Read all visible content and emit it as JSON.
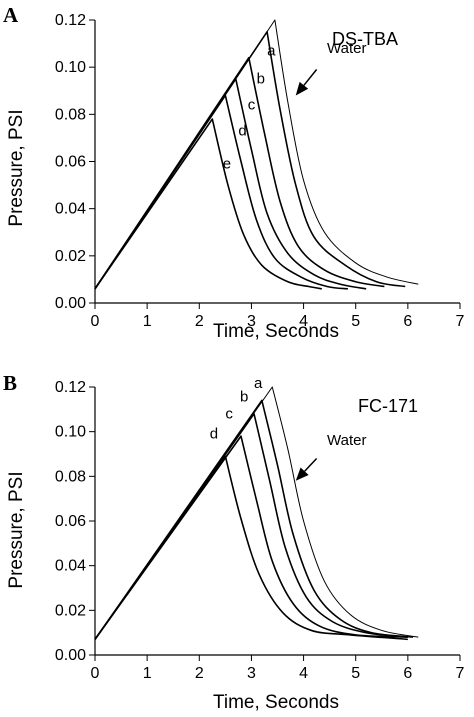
{
  "chart_data": [
    {
      "type": "line",
      "panel": "A",
      "title": "DS-TBA",
      "xlabel": "Time, Seconds",
      "ylabel": "Pressure, PSI",
      "xlim": [
        0,
        7
      ],
      "ylim": [
        0,
        0.12
      ],
      "xticks": [
        "0",
        "1",
        "2",
        "3",
        "4",
        "5",
        "6",
        "7"
      ],
      "yticks": [
        "0.00",
        "0.02",
        "0.04",
        "0.06",
        "0.08",
        "0.10",
        "0.12"
      ],
      "grid": false,
      "annotation": "Water",
      "series": [
        {
          "label": "",
          "width": 1.0,
          "x": [
            0,
            3.45,
            3.7,
            4.0,
            4.4,
            5.0,
            5.6,
            6.2
          ],
          "y": [
            0.006,
            0.12,
            0.085,
            0.052,
            0.03,
            0.017,
            0.011,
            0.008
          ]
        },
        {
          "label": "a",
          "width": 1.6,
          "x": [
            0,
            3.3,
            3.55,
            3.85,
            4.2,
            4.8,
            5.4,
            5.95
          ],
          "y": [
            0.006,
            0.115,
            0.082,
            0.05,
            0.028,
            0.016,
            0.009,
            0.007
          ]
        },
        {
          "label": "b",
          "width": 1.6,
          "x": [
            0,
            2.95,
            3.25,
            3.55,
            3.9,
            4.4,
            5.0,
            5.55
          ],
          "y": [
            0.006,
            0.104,
            0.072,
            0.043,
            0.024,
            0.014,
            0.009,
            0.007
          ]
        },
        {
          "label": "c",
          "width": 1.6,
          "x": [
            0,
            2.7,
            3.0,
            3.3,
            3.7,
            4.2,
            4.7,
            5.2
          ],
          "y": [
            0.006,
            0.095,
            0.065,
            0.038,
            0.021,
            0.012,
            0.008,
            0.006
          ]
        },
        {
          "label": "d",
          "width": 1.6,
          "x": [
            0,
            2.5,
            2.8,
            3.1,
            3.45,
            3.95,
            4.45,
            4.85
          ],
          "y": [
            0.006,
            0.088,
            0.06,
            0.035,
            0.019,
            0.011,
            0.007,
            0.006
          ]
        },
        {
          "label": "e",
          "width": 1.6,
          "x": [
            0,
            2.25,
            2.55,
            2.85,
            3.2,
            3.7,
            4.1,
            4.35
          ],
          "y": [
            0.006,
            0.078,
            0.05,
            0.029,
            0.016,
            0.009,
            0.007,
            0.006
          ]
        }
      ],
      "curve_labels": [
        {
          "text": "a",
          "x": 3.3,
          "y": 0.105
        },
        {
          "text": "b",
          "x": 3.1,
          "y": 0.093
        },
        {
          "text": "c",
          "x": 2.93,
          "y": 0.082
        },
        {
          "text": "d",
          "x": 2.75,
          "y": 0.071
        },
        {
          "text": "e",
          "x": 2.45,
          "y": 0.057
        }
      ],
      "water_label": {
        "x": 4.45,
        "y": 0.106
      },
      "water_arrow": {
        "x1": 4.25,
        "y1": 0.099,
        "x2": 3.85,
        "y2": 0.088
      }
    },
    {
      "type": "line",
      "panel": "B",
      "title": "FC-171",
      "xlabel": "Time, Seconds",
      "ylabel": "Pressure, PSI",
      "xlim": [
        0,
        7
      ],
      "ylim": [
        0,
        0.12
      ],
      "xticks": [
        "0",
        "1",
        "2",
        "3",
        "4",
        "5",
        "6",
        "7"
      ],
      "yticks": [
        "0.00",
        "0.02",
        "0.04",
        "0.06",
        "0.08",
        "0.10",
        "0.12"
      ],
      "grid": false,
      "annotation": "Water",
      "series": [
        {
          "label": "",
          "width": 1.0,
          "x": [
            0,
            3.4,
            3.7,
            4.0,
            4.4,
            4.9,
            5.5,
            6.2
          ],
          "y": [
            0.007,
            0.12,
            0.092,
            0.06,
            0.033,
            0.018,
            0.011,
            0.008
          ]
        },
        {
          "label": "a",
          "width": 1.6,
          "x": [
            0,
            3.2,
            3.5,
            3.8,
            4.2,
            4.7,
            5.3,
            6.1
          ],
          "y": [
            0.007,
            0.114,
            0.085,
            0.054,
            0.029,
            0.016,
            0.01,
            0.008
          ]
        },
        {
          "label": "b",
          "width": 1.6,
          "x": [
            0,
            3.05,
            3.35,
            3.65,
            4.05,
            4.55,
            5.2,
            6.0
          ],
          "y": [
            0.007,
            0.108,
            0.078,
            0.048,
            0.026,
            0.015,
            0.01,
            0.008
          ]
        },
        {
          "label": "c",
          "width": 1.6,
          "x": [
            0,
            2.8,
            3.1,
            3.4,
            3.8,
            4.3,
            5.0,
            6.0
          ],
          "y": [
            0.007,
            0.098,
            0.069,
            0.042,
            0.023,
            0.013,
            0.009,
            0.008
          ]
        },
        {
          "label": "d",
          "width": 1.6,
          "x": [
            0,
            2.5,
            2.8,
            3.15,
            3.6,
            4.15,
            4.9,
            6.0
          ],
          "y": [
            0.007,
            0.089,
            0.061,
            0.036,
            0.019,
            0.011,
            0.009,
            0.007
          ]
        }
      ],
      "curve_labels": [
        {
          "text": "a",
          "x": 3.05,
          "y": 0.1195
        },
        {
          "text": "b",
          "x": 2.78,
          "y": 0.1135
        },
        {
          "text": "c",
          "x": 2.5,
          "y": 0.106
        },
        {
          "text": "d",
          "x": 2.2,
          "y": 0.097
        }
      ],
      "water_label": {
        "x": 4.45,
        "y": 0.094
      },
      "water_arrow": {
        "x1": 4.25,
        "y1": 0.088,
        "x2": 3.85,
        "y2": 0.078
      }
    }
  ]
}
